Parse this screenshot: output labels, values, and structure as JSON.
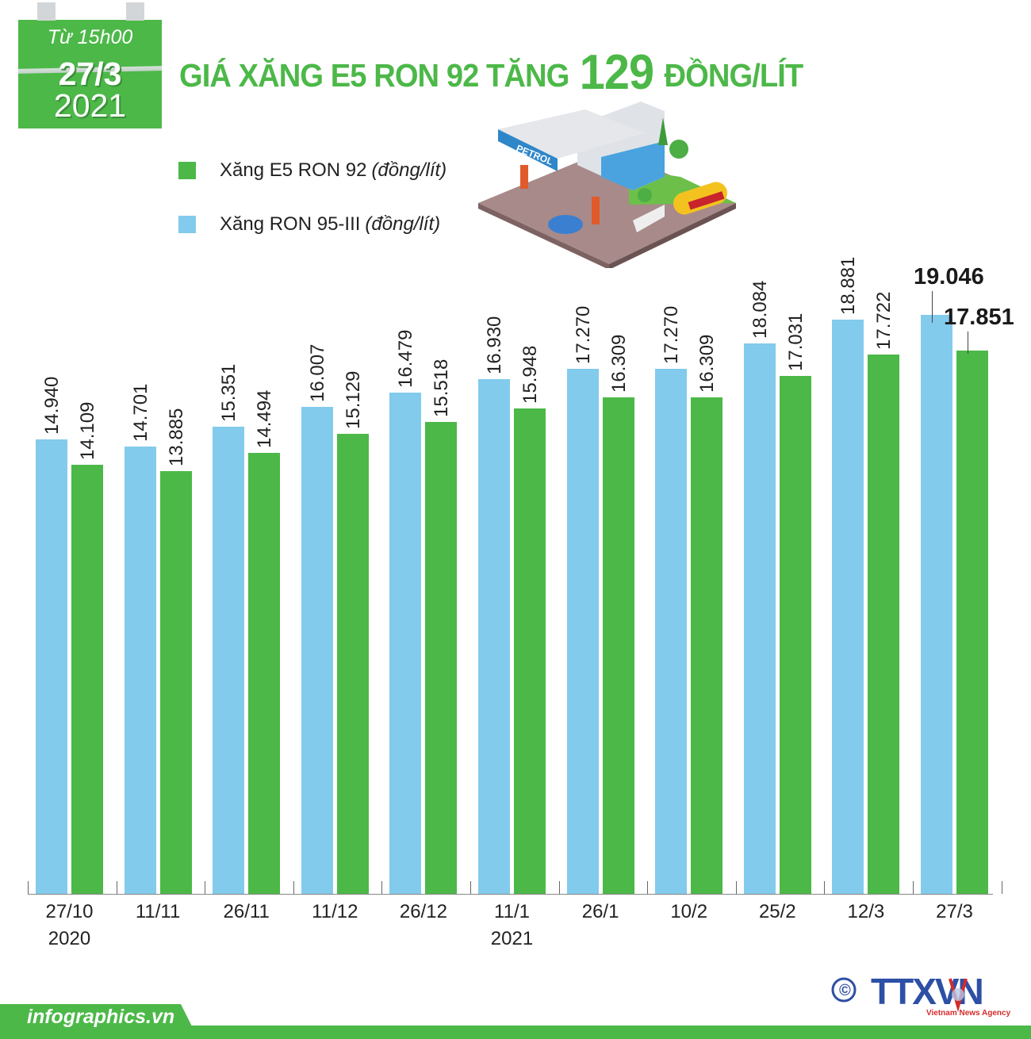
{
  "header": {
    "calendar": {
      "time": "Từ 15h00",
      "date": "27/3",
      "year": "2021"
    },
    "title_prefix": "GIÁ XĂNG E5 RON 92 TĂNG",
    "title_number": "129",
    "title_suffix": "ĐỒNG/LÍT"
  },
  "legend": [
    {
      "label": "Xăng E5 RON 92",
      "unit": "(đồng/lít)",
      "color": "#4cb848"
    },
    {
      "label": "Xăng RON 95-III",
      "unit": "(đồng/lít)",
      "color": "#82cbec"
    }
  ],
  "illustration": {
    "sign_text": "PETROL",
    "tanker_text": "PETROL"
  },
  "chart_data": {
    "type": "bar",
    "title": "GIÁ XĂNG E5 RON 92 TĂNG 129 ĐỒNG/LÍT",
    "xlabel": "",
    "ylabel": "đồng/lít",
    "ylim": [
      0,
      20000
    ],
    "grid": false,
    "legend_position": "top-left",
    "categories": [
      "27/10",
      "11/11",
      "26/11",
      "11/12",
      "26/12",
      "11/1",
      "26/1",
      "10/2",
      "25/2",
      "12/3",
      "27/3"
    ],
    "category_sublabels": [
      "2020",
      "",
      "",
      "",
      "",
      "2021",
      "",
      "",
      "",
      "",
      ""
    ],
    "series": [
      {
        "name": "Xăng RON 95-III (đồng/lít)",
        "color": "#82cbec",
        "values": [
          14940,
          14701,
          15351,
          16007,
          16479,
          16930,
          17270,
          17270,
          18084,
          18881,
          19046
        ],
        "labels": [
          "14.940",
          "14.701",
          "15.351",
          "16.007",
          "16.479",
          "16.930",
          "17.270",
          "17.270",
          "18.084",
          "18.881",
          "19.046"
        ]
      },
      {
        "name": "Xăng E5 RON 92 (đồng/lít)",
        "color": "#4cb848",
        "values": [
          14109,
          13885,
          14494,
          15129,
          15518,
          15948,
          16309,
          16309,
          17031,
          17722,
          17851
        ],
        "labels": [
          "14.109",
          "13.885",
          "14.494",
          "15.129",
          "15.518",
          "15.948",
          "16.309",
          "16.309",
          "17.031",
          "17.722",
          "17.851"
        ]
      }
    ]
  },
  "footer": {
    "site": "infographics.vn",
    "copyright_symbol": "©",
    "agency_logo": "TTXVN",
    "agency_name": "Vietnam News Agency"
  }
}
